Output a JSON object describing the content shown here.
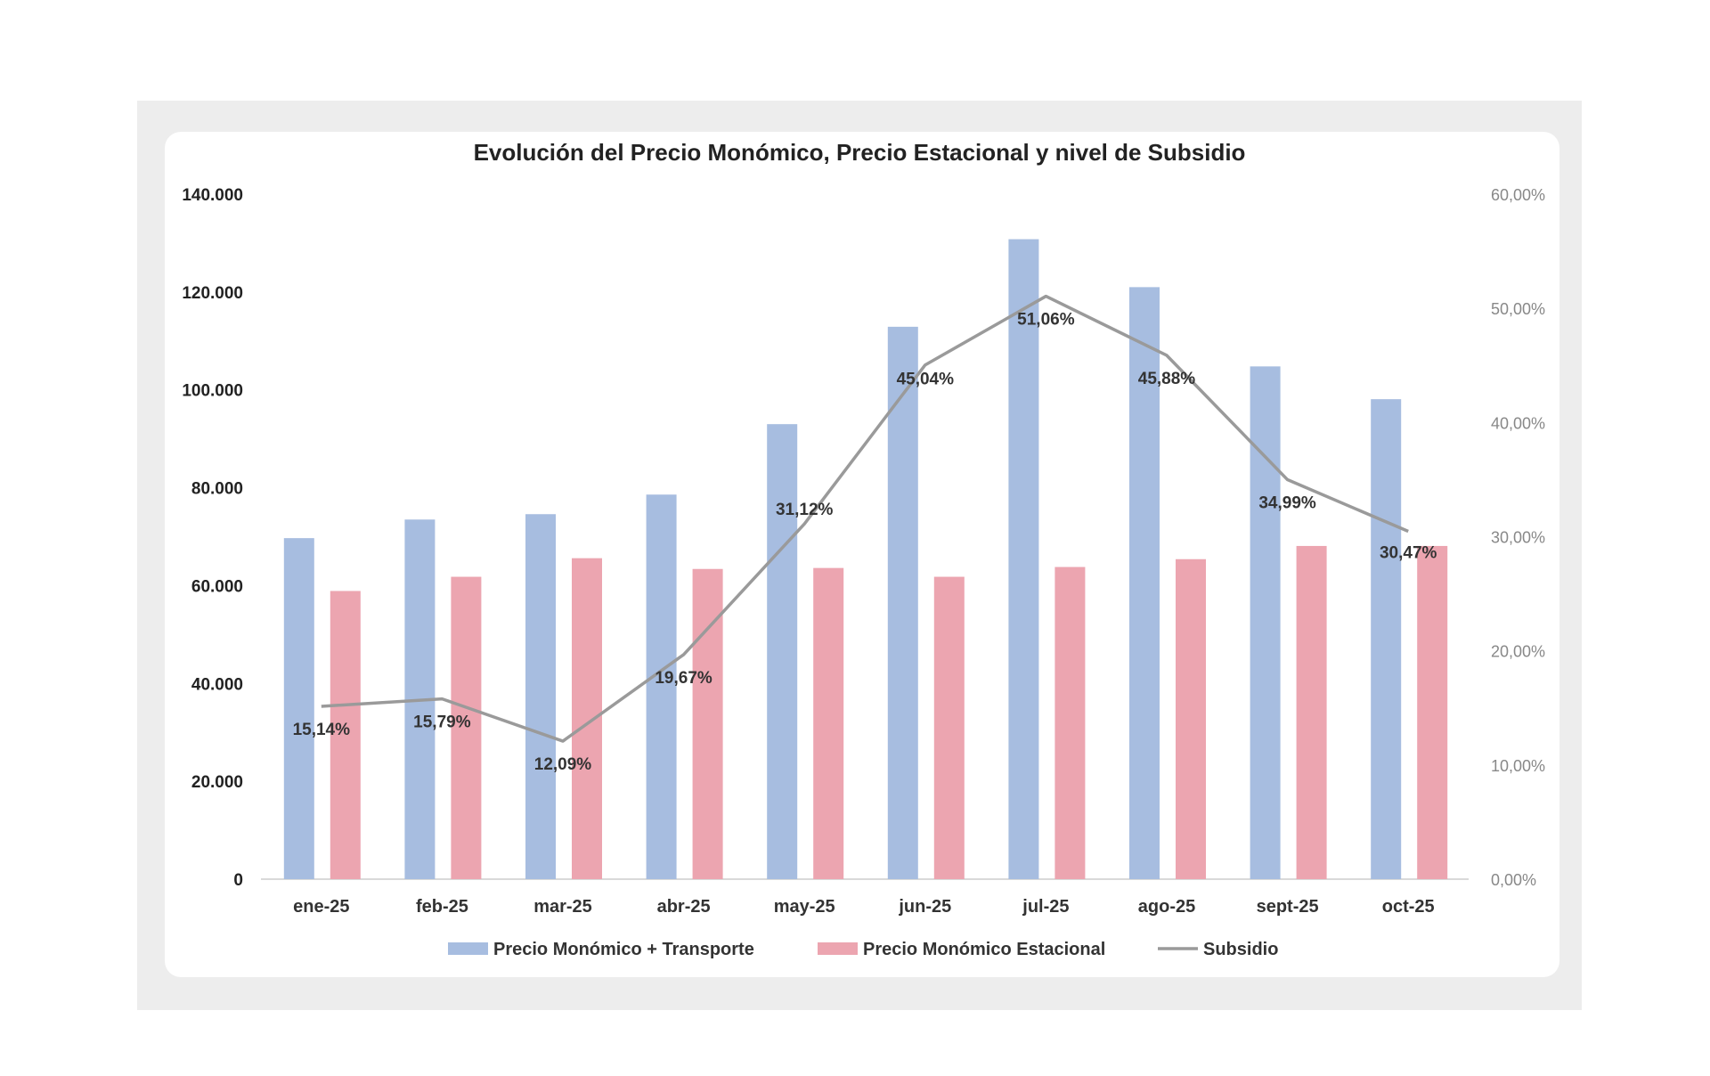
{
  "chart_data": {
    "type": "bar+line",
    "title": "Evolución del Precio Monómico, Precio Estacional y nivel de Subsidio",
    "categories": [
      "ene-25",
      "feb-25",
      "mar-25",
      "abr-25",
      "may-25",
      "jun-25",
      "jul-25",
      "ago-25",
      "sept-25",
      "oct-25"
    ],
    "y_left": {
      "ylim": [
        0,
        140000
      ],
      "ticks": [
        0,
        20000,
        40000,
        60000,
        80000,
        100000,
        120000,
        140000
      ],
      "tick_labels": [
        "0",
        "20.000",
        "40.000",
        "60.000",
        "80.000",
        "100.000",
        "120.000",
        "140.000"
      ]
    },
    "y_right": {
      "ylim": [
        0,
        60
      ],
      "ticks": [
        0,
        10,
        20,
        30,
        40,
        50,
        60
      ],
      "tick_labels": [
        "0,00%",
        "10,00%",
        "20,00%",
        "30,00%",
        "40,00%",
        "50,00%",
        "60,00%"
      ]
    },
    "grid": false,
    "legend_placement": "bottom",
    "series": [
      {
        "name": "Precio Monómico + Transporte",
        "type": "bar",
        "axis": "left",
        "color": "#a7bde0",
        "values": [
          69700,
          73500,
          74600,
          78600,
          93000,
          112900,
          130800,
          121000,
          104800,
          98100
        ]
      },
      {
        "name": "Precio Monómico Estacional",
        "type": "bar",
        "axis": "left",
        "color": "#eca5b0",
        "values": [
          58900,
          61800,
          65600,
          63400,
          63600,
          61800,
          63800,
          65400,
          68100,
          68100
        ]
      },
      {
        "name": "Subsidio",
        "type": "line",
        "axis": "right",
        "color": "#9a9a9a",
        "values": [
          15.14,
          15.79,
          12.09,
          19.67,
          31.12,
          45.04,
          51.06,
          45.88,
          34.99,
          30.47
        ],
        "data_labels": [
          "15,14%",
          "15,79%",
          "12,09%",
          "19,67%",
          "31,12%",
          "45,04%",
          "51,06%",
          "45,88%",
          "34,99%",
          "30,47%"
        ]
      }
    ]
  }
}
